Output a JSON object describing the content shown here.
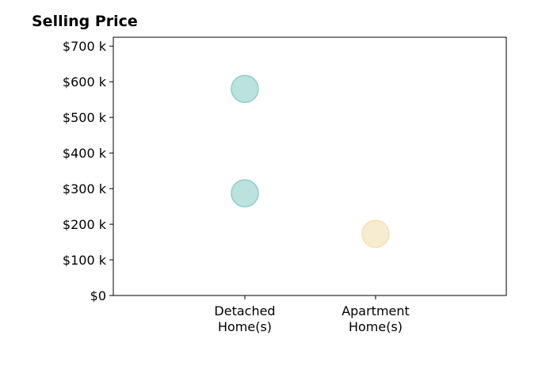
{
  "chart_data": {
    "type": "scatter",
    "title": "Selling Price",
    "xlabel": "",
    "ylabel": "",
    "categories": [
      [
        "Detached",
        "Home(s)"
      ],
      [
        "Apartment",
        "Home(s)"
      ]
    ],
    "ylim": [
      0,
      725000
    ],
    "yticks": [
      0,
      100000,
      200000,
      300000,
      400000,
      500000,
      600000,
      700000
    ],
    "ytick_labels": [
      "$0",
      "$100 k",
      "$200 k",
      "$300 k",
      "$400 k",
      "$500 k",
      "$600 k",
      "$700 k"
    ],
    "points": [
      {
        "category": 0,
        "y": 580000,
        "color": "#8ecfc9"
      },
      {
        "category": 0,
        "y": 287000,
        "color": "#8ecfc9"
      },
      {
        "category": 1,
        "y": 173000,
        "color": "#f4dfb0"
      }
    ],
    "grid": false,
    "legend": "none"
  }
}
